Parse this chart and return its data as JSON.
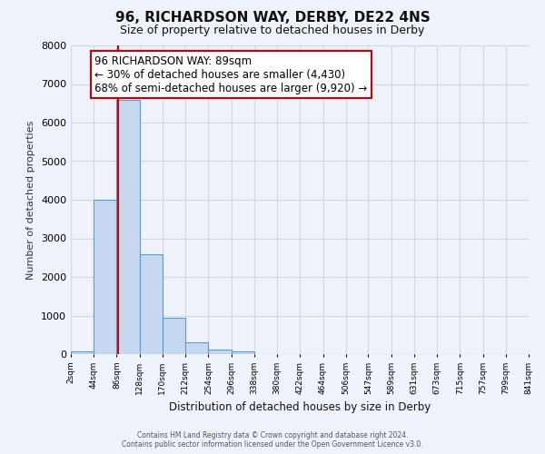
{
  "title": "96, RICHARDSON WAY, DERBY, DE22 4NS",
  "subtitle": "Size of property relative to detached houses in Derby",
  "xlabel": "Distribution of detached houses by size in Derby",
  "ylabel": "Number of detached properties",
  "bin_edges": [
    2,
    44,
    86,
    128,
    170,
    212,
    254,
    296,
    338,
    380,
    422,
    464,
    506,
    547,
    589,
    631,
    673,
    715,
    757,
    799,
    841
  ],
  "bin_labels": [
    "2sqm",
    "44sqm",
    "86sqm",
    "128sqm",
    "170sqm",
    "212sqm",
    "254sqm",
    "296sqm",
    "338sqm",
    "380sqm",
    "422sqm",
    "464sqm",
    "506sqm",
    "547sqm",
    "589sqm",
    "631sqm",
    "673sqm",
    "715sqm",
    "757sqm",
    "799sqm",
    "841sqm"
  ],
  "bar_heights": [
    60,
    4000,
    6600,
    2600,
    950,
    310,
    110,
    60,
    0,
    0,
    0,
    0,
    0,
    0,
    0,
    0,
    0,
    0,
    0,
    0
  ],
  "bar_color": "#c5d8f0",
  "bar_edge_color": "#5b9bd5",
  "ylim": [
    0,
    8000
  ],
  "property_size": 89,
  "property_line_color": "#cc0000",
  "annotation_title": "96 RICHARDSON WAY: 89sqm",
  "annotation_line1": "← 30% of detached houses are smaller (4,430)",
  "annotation_line2": "68% of semi-detached houses are larger (9,920) →",
  "annotation_box_color": "#ffffff",
  "annotation_box_edge": "#cc0000",
  "grid_color": "#d0d8e8",
  "background_color": "#eef2fa",
  "footer1": "Contains HM Land Registry data © Crown copyright and database right 2024.",
  "footer2": "Contains public sector information licensed under the Open Government Licence v3.0."
}
